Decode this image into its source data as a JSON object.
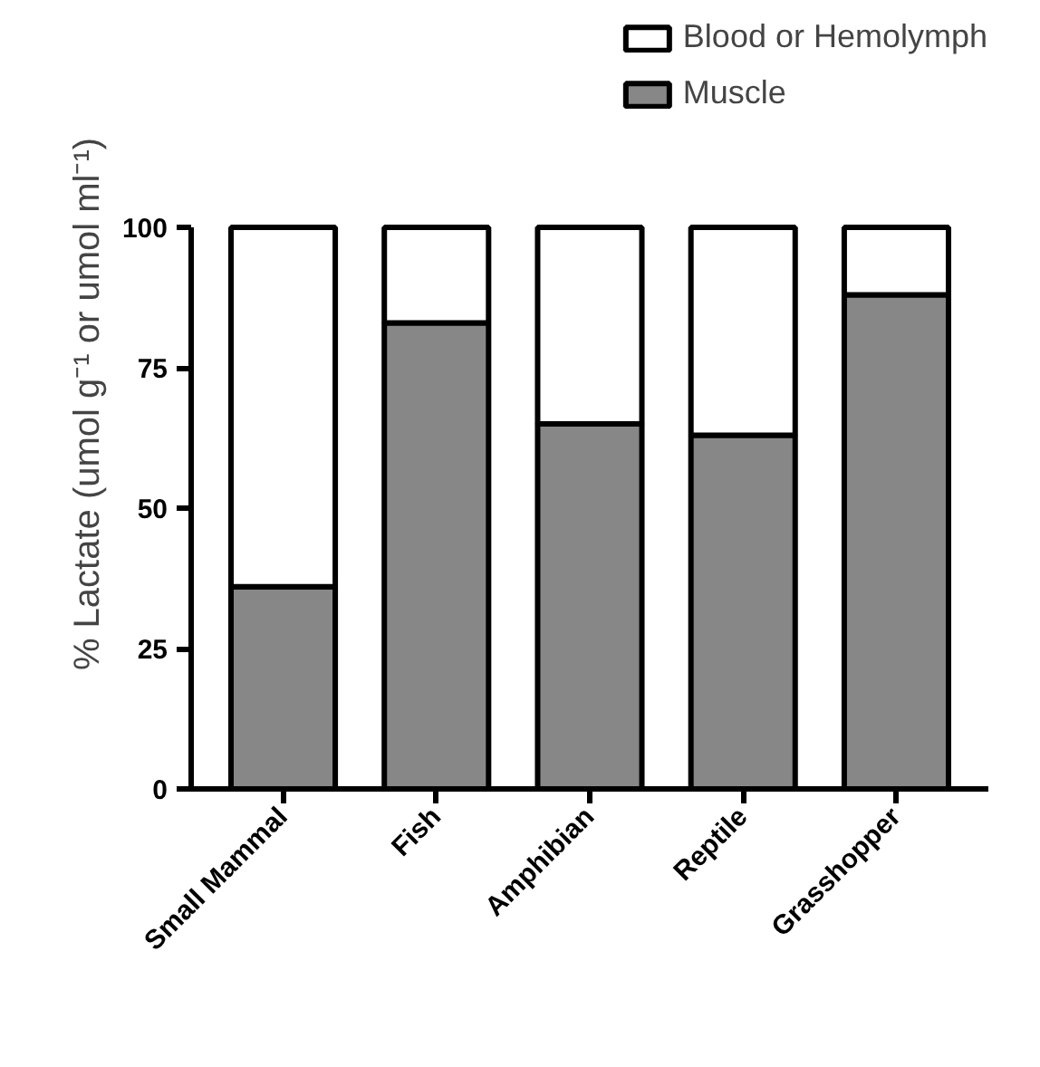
{
  "chart_data": {
    "type": "bar",
    "stacked": true,
    "ylabel": "% Lactate (umol g⁻¹ or umol ml⁻¹)",
    "categories": [
      "Small Mammal",
      "Fish",
      "Amphibian",
      "Reptile",
      "Grasshopper"
    ],
    "series": [
      {
        "name": "Muscle",
        "color": "#878787",
        "values": [
          36,
          83,
          65,
          63,
          88
        ]
      },
      {
        "name": "Blood or Hemolymph",
        "color": "#ffffff",
        "values": [
          64,
          17,
          35,
          37,
          12
        ]
      }
    ],
    "ylim": [
      0,
      100
    ],
    "yticks": [
      0,
      25,
      50,
      75,
      100
    ],
    "grid": false,
    "legend": "top right"
  }
}
